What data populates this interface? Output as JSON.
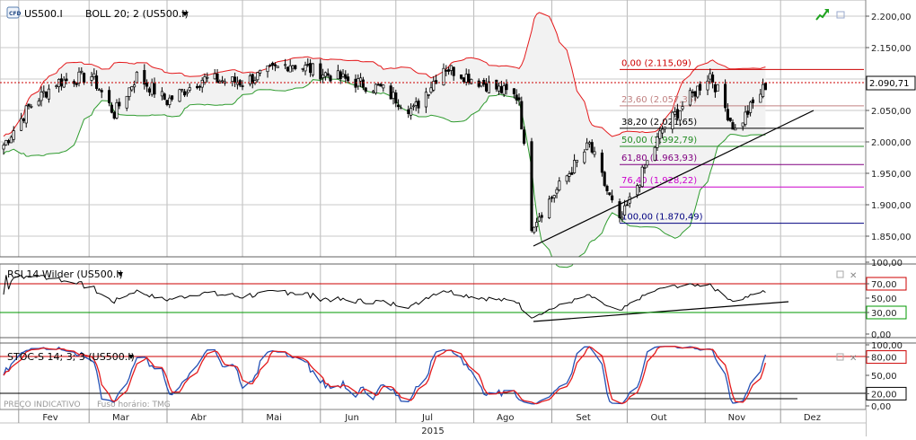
{
  "colors": {
    "bb_upper": "#e41a1c",
    "bb_lower": "#2e9b2e",
    "bb_fill": "#f2f2f2",
    "candle": "#000000",
    "rsi_line": "#000000",
    "stoch_k": "#2450b4",
    "stoch_d": "#e41a1c",
    "level_red": "#cc0000",
    "level_green": "#009900",
    "fib_0": "#cc0000",
    "fib_236": "#c08080",
    "fib_382": "#000000",
    "fib_50": "#228b22",
    "fib_618": "#800080",
    "fib_764": "#cc00cc",
    "fib_100": "#000080",
    "current_price_bg": "#ffffff"
  },
  "main_panel": {
    "symbol": "US500.I",
    "indicator": "BOLL 20; 2 (US500.I)",
    "current_price_label": "2.090,71",
    "y_ticks": [
      "2.200,00",
      "2.150,00",
      "2.100,00",
      "2.050,00",
      "2.000,00",
      "1.950,00",
      "1.900,00",
      "1.850,00"
    ],
    "fib_labels": [
      "0,00 (2.115,09)",
      "23,60 (2.057,35)",
      "38,20 (2.021,65)",
      "50,00 (1.992,79)",
      "61,80 (1.963,93)",
      "76,40 (1.928,22)",
      "100,00 (1.870,49)"
    ]
  },
  "rsi_panel": {
    "title": "RSI 14 Wilder (US500.I)",
    "y_ticks": [
      "100,00",
      "70,00",
      "50,00",
      "30,00",
      "0,00"
    ]
  },
  "stoch_panel": {
    "title": "STOC-S 14; 3; 3 (US500.I)",
    "y_ticks": [
      "100,00",
      "80,00",
      "50,00",
      "20,00",
      "0,00"
    ],
    "footer_left": "PREÇO INDICATIVO",
    "footer_right": "Fuso horário: TMG"
  },
  "x_axis": {
    "months": [
      "Fev",
      "Mar",
      "Abr",
      "Mai",
      "Jun",
      "Jul",
      "Ago",
      "Set",
      "Out",
      "Nov",
      "Dez"
    ],
    "year": "2015"
  },
  "chart_data": {
    "type": "candlestick",
    "symbol": "US500.I",
    "x_range": [
      "2015-01-26",
      "2015-12-31"
    ],
    "y_range": [
      1820,
      2210
    ],
    "daily_close_path": [
      {
        "date": "2015-01-26",
        "close": 1995
      },
      {
        "date": "2015-02-05",
        "close": 2055
      },
      {
        "date": "2015-02-16",
        "close": 2095
      },
      {
        "date": "2015-03-02",
        "close": 2105
      },
      {
        "date": "2015-03-11",
        "close": 2045
      },
      {
        "date": "2015-03-20",
        "close": 2105
      },
      {
        "date": "2015-04-01",
        "close": 2065
      },
      {
        "date": "2015-04-15",
        "close": 2100
      },
      {
        "date": "2015-05-01",
        "close": 2095
      },
      {
        "date": "2015-05-20",
        "close": 2125
      },
      {
        "date": "2015-06-10",
        "close": 2100
      },
      {
        "date": "2015-06-25",
        "close": 2085
      },
      {
        "date": "2015-07-08",
        "close": 2050
      },
      {
        "date": "2015-07-20",
        "close": 2120
      },
      {
        "date": "2015-08-04",
        "close": 2095
      },
      {
        "date": "2015-08-19",
        "close": 2070
      },
      {
        "date": "2015-08-24",
        "close": 1868
      },
      {
        "date": "2015-09-16",
        "close": 1995
      },
      {
        "date": "2015-09-28",
        "close": 1870
      },
      {
        "date": "2015-10-15",
        "close": 2020
      },
      {
        "date": "2015-11-03",
        "close": 2108
      },
      {
        "date": "2015-11-13",
        "close": 2018
      },
      {
        "date": "2015-11-25",
        "close": 2090
      }
    ],
    "bollinger": {
      "period": 20,
      "stddev": 2
    },
    "fibonacci": [
      {
        "level": "0,00",
        "price": 2115.09
      },
      {
        "level": "23,60",
        "price": 2057.35
      },
      {
        "level": "38,20",
        "price": 2021.65
      },
      {
        "level": "50,00",
        "price": 1992.79
      },
      {
        "level": "61,80",
        "price": 1963.93
      },
      {
        "level": "76,40",
        "price": 1928.22
      },
      {
        "level": "100,00",
        "price": 1870.49
      }
    ],
    "current_price": 2090.71,
    "rsi": {
      "period": 14,
      "levels": [
        70,
        30
      ],
      "y_range": [
        0,
        100
      ]
    },
    "stochastic": {
      "params": "14; 3; 3",
      "levels": [
        80,
        20
      ],
      "y_range": [
        0,
        100
      ]
    }
  }
}
